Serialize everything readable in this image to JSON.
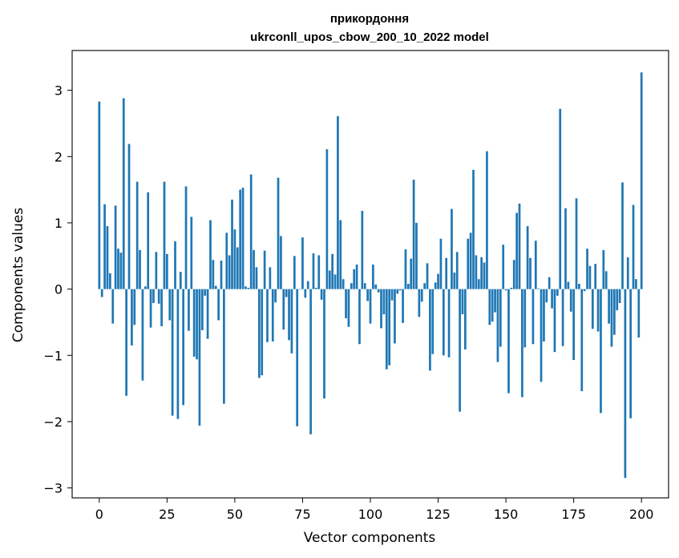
{
  "chart_data": {
    "type": "bar",
    "title_line1": "прикордоння",
    "title_line2": "ukrconll_upos_cbow_200_10_2022 model",
    "xlabel": "Vector components",
    "ylabel": "Components values",
    "xlim": [
      -10,
      210
    ],
    "ylim": [
      -3.15,
      3.6
    ],
    "xticks": [
      0,
      25,
      50,
      75,
      100,
      125,
      150,
      175,
      200
    ],
    "yticks": [
      -3,
      -2,
      -1,
      0,
      1,
      2,
      3
    ],
    "grid": false,
    "bar_color": "#1f77b4",
    "values": [
      2.83,
      -0.12,
      1.28,
      0.95,
      0.24,
      -0.52,
      1.26,
      0.61,
      0.55,
      2.88,
      -1.61,
      2.19,
      -0.85,
      -0.54,
      1.62,
      0.59,
      -1.38,
      0.04,
      1.46,
      -0.58,
      -0.21,
      0.56,
      -0.22,
      -0.56,
      1.62,
      0.53,
      -0.47,
      -1.91,
      0.72,
      -1.96,
      0.26,
      -1.75,
      1.55,
      -0.63,
      1.09,
      -1.02,
      -1.06,
      -2.06,
      -0.62,
      -0.1,
      -0.75,
      1.04,
      0.44,
      0.05,
      -0.47,
      0.43,
      -1.73,
      0.85,
      0.51,
      1.35,
      0.9,
      0.63,
      1.5,
      1.53,
      0.04,
      0.02,
      1.73,
      0.59,
      0.33,
      -1.34,
      -1.3,
      0.58,
      -0.8,
      0.33,
      -0.79,
      -0.2,
      1.68,
      0.8,
      -0.61,
      -0.12,
      -0.77,
      -0.97,
      0.5,
      -2.07,
      0.0,
      0.78,
      -0.13,
      0.12,
      -2.19,
      0.54,
      0.02,
      0.51,
      -0.16,
      -1.65,
      2.11,
      0.28,
      0.53,
      0.22,
      2.61,
      1.04,
      0.15,
      -0.44,
      -0.57,
      0.09,
      0.3,
      0.37,
      -0.83,
      1.18,
      0.09,
      -0.18,
      -0.52,
      0.37,
      0.07,
      -0.05,
      -0.59,
      -0.38,
      -1.21,
      -1.15,
      -0.17,
      -0.82,
      -0.07,
      -0.02,
      -0.51,
      0.6,
      0.08,
      0.46,
      1.65,
      1.0,
      -0.42,
      -0.19,
      0.09,
      0.39,
      -1.23,
      -0.98,
      0.1,
      0.23,
      0.76,
      -1.0,
      0.47,
      -1.03,
      1.21,
      0.25,
      0.56,
      -1.85,
      -0.38,
      -0.91,
      0.76,
      0.85,
      1.8,
      0.51,
      0.15,
      0.48,
      0.4,
      2.08,
      -0.54,
      -0.49,
      -0.35,
      -1.1,
      -0.87,
      0.67,
      -0.02,
      -1.57,
      0.02,
      0.44,
      1.15,
      1.29,
      -1.63,
      -0.88,
      0.95,
      0.47,
      -0.83,
      0.73,
      0.01,
      -1.4,
      -0.79,
      -0.2,
      0.18,
      -0.29,
      -0.95,
      -0.1,
      2.72,
      -0.86,
      1.22,
      0.11,
      -0.34,
      -1.07,
      1.37,
      0.08,
      -1.54,
      -0.03,
      0.61,
      0.35,
      -0.6,
      0.38,
      -0.64,
      -1.87,
      0.59,
      0.27,
      -0.52,
      -0.87,
      -0.69,
      -0.32,
      -0.21,
      1.61,
      -2.85,
      0.48,
      -1.95,
      1.27,
      0.15,
      -0.73,
      3.27
    ]
  }
}
